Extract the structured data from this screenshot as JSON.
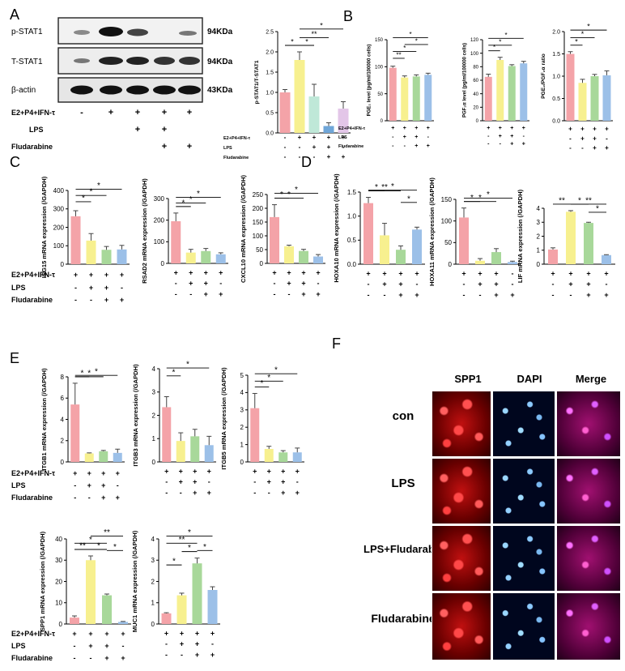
{
  "panels": {
    "A": "A",
    "B": "B",
    "C": "C",
    "D": "D",
    "E": "E",
    "F": "F"
  },
  "western_blot": {
    "rows": [
      {
        "label": "p-STAT1",
        "kda": "94KDa"
      },
      {
        "label": "T-STAT1",
        "kda": "94KDa"
      },
      {
        "label": "β-actin",
        "kda": "43KDa"
      }
    ],
    "conditions": [
      {
        "label": "E2+P4+IFN-τ",
        "signs": [
          "-",
          "+",
          "+",
          "+",
          "+"
        ]
      },
      {
        "label": "LPS",
        "signs": [
          "",
          "",
          "+",
          "+",
          ""
        ]
      },
      {
        "label": "Fludarabine",
        "signs": [
          "",
          "",
          "",
          "+",
          "+"
        ]
      }
    ]
  },
  "colors": {
    "bars5": [
      "#f4a3a8",
      "#f7f08f",
      "#bfe8d8",
      "#6fa6d8",
      "#e3c6e8"
    ],
    "bars4": [
      "#f4a3a8",
      "#f7f08f",
      "#a8d89a",
      "#9cc0e8"
    ],
    "error": "#444444"
  },
  "microscopy": {
    "columns": [
      "SPP1",
      "DAPI",
      "Merge"
    ],
    "rows": [
      "con",
      "LPS",
      "LPS+Fludarabine",
      "Fludarabine"
    ]
  },
  "chart_data": [
    {
      "id": "A_ratio",
      "type": "bar",
      "ylabel": "p-STAT1/T-STAT1",
      "ylim": [
        0,
        2.5
      ],
      "yticks": [
        "0.0",
        "0.5",
        "1.0",
        "1.5",
        "2.0",
        "2.5"
      ],
      "values": [
        1.0,
        1.8,
        0.9,
        0.17,
        0.6
      ],
      "errors": [
        0.07,
        0.2,
        0.3,
        0.08,
        0.17
      ],
      "conditions": [
        {
          "label": "E2+P4+IFN-τ",
          "signs": [
            "-",
            "+",
            "+",
            "+",
            "+"
          ]
        },
        {
          "label": "LPS",
          "signs": [
            "-",
            "-",
            "+",
            "+",
            "-"
          ]
        },
        {
          "label": "Fludarabine",
          "signs": [
            "-",
            "-",
            "-",
            "+",
            "+"
          ]
        }
      ],
      "sig": [
        {
          "from": 0,
          "to": 1,
          "label": "*"
        },
        {
          "from": 1,
          "to": 2,
          "label": "*"
        },
        {
          "from": 1,
          "to": 3,
          "label": "**"
        },
        {
          "from": 1,
          "to": 4,
          "label": "*"
        }
      ]
    },
    {
      "id": "B_pge",
      "type": "bar",
      "ylabel": "PGE₂ level (pg/ml/100000 cells)",
      "ylim": [
        0,
        150
      ],
      "yticks": [
        "0",
        "50",
        "100",
        "150"
      ],
      "values": [
        98,
        80,
        82,
        85
      ],
      "errors": [
        3,
        3,
        3,
        3
      ],
      "conditions": [
        {
          "label": "E2+P4+IFN-τ",
          "signs": [
            "+",
            "+",
            "+",
            "+"
          ]
        },
        {
          "label": "LPS",
          "signs": [
            "-",
            "+",
            "+",
            "-"
          ]
        },
        {
          "label": "Fludarabine",
          "signs": [
            "-",
            "-",
            "+",
            "+"
          ]
        }
      ],
      "sig": [
        {
          "from": 0,
          "to": 1,
          "label": "**"
        },
        {
          "from": 0,
          "to": 2,
          "label": "*"
        },
        {
          "from": 0,
          "to": 3,
          "label": "*"
        },
        {
          "from": 1,
          "to": 3,
          "label": "*"
        }
      ]
    },
    {
      "id": "B_pgf",
      "type": "bar",
      "ylabel": "PGF₂α level (pg/ml/100000 cells)",
      "ylim": [
        0,
        120
      ],
      "yticks": [
        "0",
        "20",
        "40",
        "60",
        "80",
        "100",
        "120"
      ],
      "values": [
        65,
        90,
        81,
        85
      ],
      "errors": [
        4,
        4,
        2,
        3
      ],
      "conditions": [
        {
          "label": "",
          "signs": [
            "+",
            "+",
            "+",
            "+"
          ]
        },
        {
          "label": "",
          "signs": [
            "-",
            "+",
            "+",
            "-"
          ]
        },
        {
          "label": "",
          "signs": [
            "-",
            "-",
            "+",
            "+"
          ]
        }
      ],
      "sig": [
        {
          "from": 0,
          "to": 1,
          "label": "*"
        },
        {
          "from": 0,
          "to": 2,
          "label": "*"
        },
        {
          "from": 0,
          "to": 3,
          "label": "*"
        }
      ]
    },
    {
      "id": "B_ratio",
      "type": "bar",
      "ylabel": "PGE₂/PGF₂α ratio",
      "ylim": [
        0,
        2.0
      ],
      "yticks": [
        "0.0",
        "0.5",
        "1.0",
        "1.5",
        "2.0"
      ],
      "values": [
        1.5,
        0.85,
        1.0,
        1.02
      ],
      "errors": [
        0.05,
        0.08,
        0.04,
        0.1
      ],
      "conditions": [
        {
          "label": "",
          "signs": [
            "+",
            "+",
            "+",
            "+"
          ]
        },
        {
          "label": "",
          "signs": [
            "-",
            "+",
            "+",
            "-"
          ]
        },
        {
          "label": "",
          "signs": [
            "-",
            "-",
            "+",
            "+"
          ]
        }
      ],
      "sig": [
        {
          "from": 0,
          "to": 1,
          "label": "*"
        },
        {
          "from": 0,
          "to": 2,
          "label": "*"
        },
        {
          "from": 0,
          "to": 3,
          "label": "*"
        }
      ]
    },
    {
      "id": "C_isg15",
      "type": "bar",
      "ylabel": "ISG15 mRNA expression (/GAPDH)",
      "ylim": [
        0,
        400
      ],
      "yticks": [
        "0",
        "100",
        "200",
        "300",
        "400"
      ],
      "values": [
        260,
        128,
        78,
        80
      ],
      "errors": [
        30,
        38,
        18,
        22
      ],
      "conditions": [
        {
          "label": "E2+P4+IFN-τ",
          "signs": [
            "+",
            "+",
            "+",
            "+"
          ]
        },
        {
          "label": "LPS",
          "signs": [
            "-",
            "+",
            "+",
            "-"
          ]
        },
        {
          "label": "Fludarabine",
          "signs": [
            "-",
            "-",
            "+",
            "+"
          ]
        }
      ],
      "sig": [
        {
          "from": 0,
          "to": 1,
          "label": "*"
        },
        {
          "from": 0,
          "to": 2,
          "label": "*"
        },
        {
          "from": 0,
          "to": 3,
          "label": "*"
        }
      ]
    },
    {
      "id": "C_rsad2",
      "type": "bar",
      "ylabel": "RSAD2 mRNA expression (/GAPDH)",
      "ylim": [
        0,
        300
      ],
      "yticks": [
        "0",
        "100",
        "200",
        "300"
      ],
      "values": [
        195,
        50,
        57,
        42
      ],
      "errors": [
        38,
        15,
        12,
        7
      ],
      "conditions": [
        {
          "label": "",
          "signs": [
            "+",
            "+",
            "+",
            "+"
          ]
        },
        {
          "label": "",
          "signs": [
            "-",
            "+",
            "+",
            "-"
          ]
        },
        {
          "label": "",
          "signs": [
            "-",
            "-",
            "+",
            "+"
          ]
        }
      ],
      "sig": [
        {
          "from": 0,
          "to": 1,
          "label": "*"
        },
        {
          "from": 0,
          "to": 2,
          "label": "*"
        },
        {
          "from": 0,
          "to": 3,
          "label": "*"
        }
      ]
    },
    {
      "id": "C_cxcl10",
      "type": "bar",
      "ylabel": "CXCL10 mRNA expression (/GAPDH)",
      "ylim": [
        0,
        250
      ],
      "yticks": [
        "0",
        "50",
        "100",
        "150",
        "200",
        "250"
      ],
      "values": [
        168,
        62,
        45,
        25
      ],
      "errors": [
        45,
        4,
        6,
        7
      ],
      "conditions": [
        {
          "label": "",
          "signs": [
            "+",
            "+",
            "+",
            "+"
          ]
        },
        {
          "label": "",
          "signs": [
            "-",
            "+",
            "+",
            "-"
          ]
        },
        {
          "label": "",
          "signs": [
            "-",
            "-",
            "+",
            "+"
          ]
        }
      ],
      "sig": [
        {
          "from": 0,
          "to": 1,
          "label": "*"
        },
        {
          "from": 0,
          "to": 2,
          "label": "*"
        },
        {
          "from": 0,
          "to": 3,
          "label": "*"
        }
      ]
    },
    {
      "id": "D_hoxa10",
      "type": "bar",
      "ylabel": "HOXA10 mRNA expression (/GAPDH)",
      "ylim": [
        0,
        1.5
      ],
      "yticks": [
        "0.0",
        "0.5",
        "1.0",
        "1.5"
      ],
      "values": [
        1.27,
        0.6,
        0.3,
        0.72
      ],
      "errors": [
        0.12,
        0.25,
        0.08,
        0.05
      ],
      "conditions": [
        {
          "label": "",
          "signs": [
            "+",
            "+",
            "+",
            "+"
          ]
        },
        {
          "label": "",
          "signs": [
            "-",
            "+",
            "+",
            "-"
          ]
        },
        {
          "label": "",
          "signs": [
            "-",
            "-",
            "+",
            "+"
          ]
        }
      ],
      "sig": [
        {
          "from": 0,
          "to": 1,
          "label": "*"
        },
        {
          "from": 0,
          "to": 2,
          "label": "**"
        },
        {
          "from": 0,
          "to": 3,
          "label": "*"
        },
        {
          "from": 2,
          "to": 3,
          "label": "*"
        }
      ]
    },
    {
      "id": "D_hoxa11",
      "type": "bar",
      "ylabel": "HOXA11 mRNA expression (/GAPDH)",
      "ylim": [
        0,
        150
      ],
      "yticks": [
        "0",
        "50",
        "100",
        "150"
      ],
      "values": [
        108,
        8,
        28,
        5
      ],
      "errors": [
        22,
        5,
        8,
        2
      ],
      "conditions": [
        {
          "label": "",
          "signs": [
            "+",
            "+",
            "+",
            "-"
          ]
        },
        {
          "label": "",
          "signs": [
            "-",
            "+",
            "+",
            "-"
          ]
        },
        {
          "label": "",
          "signs": [
            "-",
            "-",
            "+",
            "+"
          ]
        }
      ],
      "sig": [
        {
          "from": 0,
          "to": 1,
          "label": "*"
        },
        {
          "from": 0,
          "to": 2,
          "label": "*"
        },
        {
          "from": 0,
          "to": 3,
          "label": "*"
        }
      ]
    },
    {
      "id": "D_lif",
      "type": "bar",
      "ylabel": "LIF mRNA expression (/GAPDH)",
      "ylim": [
        0,
        4
      ],
      "yticks": [
        "0",
        "1",
        "2",
        "3",
        "4"
      ],
      "values": [
        1.05,
        3.75,
        2.95,
        0.65
      ],
      "errors": [
        0.12,
        0.08,
        0.05,
        0.03
      ],
      "conditions": [
        {
          "label": "",
          "signs": [
            "+",
            "+",
            "+",
            "+"
          ]
        },
        {
          "label": "",
          "signs": [
            "-",
            "+",
            "+",
            "-"
          ]
        },
        {
          "label": "",
          "signs": [
            "-",
            "-",
            "+",
            "+"
          ]
        }
      ],
      "sig": [
        {
          "from": 0,
          "to": 1,
          "label": "**"
        },
        {
          "from": 1,
          "to": 2,
          "label": "*"
        },
        {
          "from": 1,
          "to": 3,
          "label": "**"
        },
        {
          "from": 2,
          "to": 3,
          "label": "*"
        }
      ]
    },
    {
      "id": "E_itgb1",
      "type": "bar",
      "ylabel": "ITGB1 mRNA expression (/GAPDH)",
      "ylim": [
        0,
        8
      ],
      "yticks": [
        "0",
        "2",
        "4",
        "6",
        "8"
      ],
      "values": [
        5.4,
        0.8,
        1.0,
        0.85
      ],
      "errors": [
        2.0,
        0.05,
        0.08,
        0.35
      ],
      "conditions": [
        {
          "label": "E2+P4+IFN-τ",
          "signs": [
            "+",
            "+",
            "+",
            "+"
          ]
        },
        {
          "label": "LPS",
          "signs": [
            "-",
            "+",
            "+",
            "-"
          ]
        },
        {
          "label": "Fludarabine",
          "signs": [
            "-",
            "-",
            "+",
            "+"
          ]
        }
      ],
      "sig": [
        {
          "from": 0,
          "to": 1,
          "label": "*"
        },
        {
          "from": 0,
          "to": 2,
          "label": "*"
        },
        {
          "from": 0,
          "to": 3,
          "label": "*"
        }
      ]
    },
    {
      "id": "E_itgb3",
      "type": "bar",
      "ylabel": "ITGB3 mRNA expression (/GAPDH)",
      "ylim": [
        0,
        4
      ],
      "yticks": [
        "0",
        "1",
        "2",
        "3",
        "4"
      ],
      "values": [
        2.35,
        0.9,
        1.1,
        0.72
      ],
      "errors": [
        0.45,
        0.35,
        0.3,
        0.38
      ],
      "conditions": [
        {
          "label": "",
          "signs": [
            "+",
            "+",
            "+",
            "+"
          ]
        },
        {
          "label": "",
          "signs": [
            "-",
            "+",
            "+",
            "-"
          ]
        },
        {
          "label": "",
          "signs": [
            "-",
            "-",
            "+",
            "+"
          ]
        }
      ],
      "sig": [
        {
          "from": 0,
          "to": 1,
          "label": "*"
        },
        {
          "from": 0,
          "to": 3,
          "label": "*"
        }
      ]
    },
    {
      "id": "E_itgb5",
      "type": "bar",
      "ylabel": "ITGB5 mRNA expression (/GAPDH)",
      "ylim": [
        0,
        5
      ],
      "yticks": [
        "0",
        "1",
        "2",
        "3",
        "4",
        "5"
      ],
      "values": [
        3.1,
        0.75,
        0.55,
        0.55
      ],
      "errors": [
        0.85,
        0.15,
        0.1,
        0.25
      ],
      "conditions": [
        {
          "label": "",
          "signs": [
            "+",
            "+",
            "+",
            "+"
          ]
        },
        {
          "label": "",
          "signs": [
            "-",
            "+",
            "+",
            "-"
          ]
        },
        {
          "label": "",
          "signs": [
            "-",
            "-",
            "+",
            "+"
          ]
        }
      ],
      "sig": [
        {
          "from": 0,
          "to": 1,
          "label": "*"
        },
        {
          "from": 0,
          "to": 2,
          "label": "*"
        },
        {
          "from": 0,
          "to": 3,
          "label": "*"
        }
      ]
    },
    {
      "id": "E_spp1",
      "type": "bar",
      "ylabel": "SPP1 mRNA expression (/GAPDH)",
      "ylim": [
        0,
        40
      ],
      "yticks": [
        "0",
        "10",
        "20",
        "30",
        "40"
      ],
      "values": [
        3,
        30,
        13.5,
        1
      ],
      "errors": [
        0.8,
        2.0,
        0.6,
        0.2
      ],
      "conditions": [
        {
          "label": "E2+P4+IFN-τ",
          "signs": [
            "+",
            "+",
            "+",
            "+"
          ]
        },
        {
          "label": "LPS",
          "signs": [
            "-",
            "+",
            "+",
            "-"
          ]
        },
        {
          "label": "Fludarabine",
          "signs": [
            "-",
            "-",
            "+",
            "+"
          ]
        }
      ],
      "sig": [
        {
          "from": 0,
          "to": 1,
          "label": "**"
        },
        {
          "from": 0,
          "to": 2,
          "label": "*"
        },
        {
          "from": 1,
          "to": 2,
          "label": "*"
        },
        {
          "from": 1,
          "to": 3,
          "label": "**"
        },
        {
          "from": 2,
          "to": 3,
          "label": "*"
        }
      ]
    },
    {
      "id": "E_muc1",
      "type": "bar",
      "ylabel": "MUC1 mRNA expression (/GAPDH)",
      "ylim": [
        0,
        4
      ],
      "yticks": [
        "0",
        "1",
        "2",
        "3",
        "4"
      ],
      "values": [
        0.5,
        1.35,
        2.85,
        1.6
      ],
      "errors": [
        0.03,
        0.1,
        0.25,
        0.15
      ],
      "conditions": [
        {
          "label": "",
          "signs": [
            "+",
            "+",
            "+",
            "+"
          ]
        },
        {
          "label": "",
          "signs": [
            "-",
            "+",
            "+",
            "-"
          ]
        },
        {
          "label": "",
          "signs": [
            "-",
            "-",
            "+",
            "+"
          ]
        }
      ],
      "sig": [
        {
          "from": 0,
          "to": 1,
          "label": "*"
        },
        {
          "from": 0,
          "to": 2,
          "label": "**"
        },
        {
          "from": 0,
          "to": 3,
          "label": "*"
        },
        {
          "from": 1,
          "to": 2,
          "label": "*"
        },
        {
          "from": 2,
          "to": 3,
          "label": "*"
        }
      ]
    }
  ]
}
